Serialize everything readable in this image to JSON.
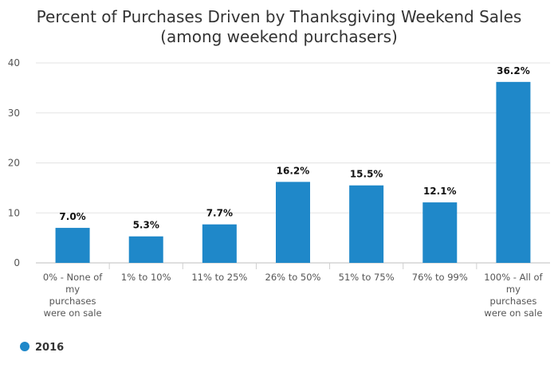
{
  "chart_data": {
    "type": "bar",
    "title": "Percent of Purchases Driven by Thanksgiving Weekend Sales",
    "subtitle": "(among weekend purchasers)",
    "categories": [
      "0% - None of my purchases were on sale",
      "1% to 10%",
      "11% to 25%",
      "26% to 50%",
      "51% to 75%",
      "76% to 99%",
      "100% - All of my purchases were on sale"
    ],
    "category_lines": [
      [
        "0% - None of",
        "my",
        "purchases",
        "were on sale"
      ],
      [
        "1% to 10%"
      ],
      [
        "11% to 25%"
      ],
      [
        "26% to 50%"
      ],
      [
        "51% to 75%"
      ],
      [
        "76% to 99%"
      ],
      [
        "100% - All of",
        "my",
        "purchases",
        "were on sale"
      ]
    ],
    "series": [
      {
        "name": "2016",
        "values": [
          7.0,
          5.3,
          7.7,
          16.2,
          15.5,
          12.1,
          36.2
        ],
        "labels": [
          "7.0%",
          "5.3%",
          "7.7%",
          "16.2%",
          "15.5%",
          "12.1%",
          "36.2%"
        ],
        "color": "#1f88c9"
      }
    ],
    "ylim": [
      0,
      40
    ],
    "yticks": [
      "0",
      "10",
      "20",
      "30",
      "40"
    ],
    "grid": true,
    "legend_position": "bottom-left"
  }
}
